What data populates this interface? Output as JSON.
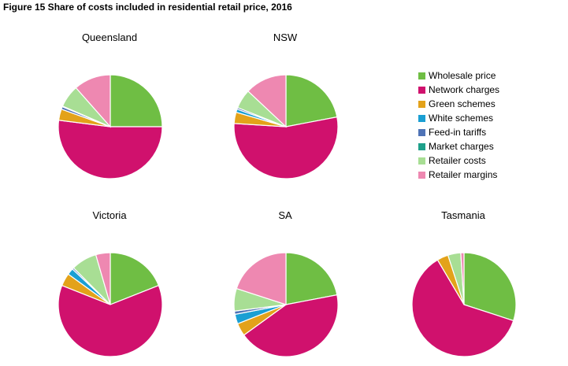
{
  "figure": {
    "title": "Figure 15  Share of costs included in residential retail price, 2016"
  },
  "legend": [
    {
      "name": "Wholesale price",
      "color": "#6fbe44"
    },
    {
      "name": "Network charges",
      "color": "#d0116d"
    },
    {
      "name": "Green schemes",
      "color": "#e3a21a"
    },
    {
      "name": "White schemes",
      "color": "#1a9fd3"
    },
    {
      "name": "Feed-in tariffs",
      "color": "#4f73b6"
    },
    {
      "name": "Market charges",
      "color": "#1ea08a"
    },
    {
      "name": "Retailer costs",
      "color": "#a8de94"
    },
    {
      "name": "Retailer margins",
      "color": "#ee88b1"
    }
  ],
  "chart_data": [
    {
      "type": "pie",
      "title": "Queensland",
      "categories": [
        "Wholesale price",
        "Network charges",
        "Green schemes",
        "White schemes",
        "Feed-in tariffs",
        "Market charges",
        "Retailer costs",
        "Retailer margins"
      ],
      "values": [
        25,
        52,
        3.5,
        0,
        0.8,
        0.2,
        7,
        11.5
      ],
      "extra_slices": [
        {
          "name": "",
          "color": "#fdd3a4",
          "note": "unlabelled slice"
        }
      ]
    },
    {
      "type": "pie",
      "title": "NSW",
      "categories": [
        "Wholesale price",
        "Network charges",
        "Green schemes",
        "White schemes",
        "Feed-in tariffs",
        "Market charges",
        "Retailer costs",
        "Retailer margins"
      ],
      "values": [
        22,
        54,
        3.5,
        1,
        0.5,
        0,
        6,
        13
      ]
    },
    {
      "type": "pie",
      "title": "Victoria",
      "categories": [
        "Wholesale price",
        "Network charges",
        "Green schemes",
        "White schemes",
        "Feed-in tariffs",
        "Market charges",
        "Retailer costs",
        "Retailer margins"
      ],
      "values": [
        19,
        62,
        4,
        2,
        0.5,
        0,
        8,
        4.5
      ]
    },
    {
      "type": "pie",
      "title": "SA",
      "categories": [
        "Wholesale price",
        "Network charges",
        "Green schemes",
        "White schemes",
        "Feed-in tariffs",
        "Market charges",
        "Retailer costs",
        "Retailer margins"
      ],
      "values": [
        22,
        43,
        4,
        3,
        1,
        0,
        7,
        20
      ]
    },
    {
      "type": "pie",
      "title": "Tasmania",
      "categories": [
        "Wholesale price",
        "Network charges",
        "Green schemes",
        "White schemes",
        "Feed-in tariffs",
        "Market charges",
        "Retailer costs",
        "Retailer margins"
      ],
      "values": [
        30,
        61.5,
        3.5,
        0,
        0,
        0,
        4,
        1
      ]
    }
  ]
}
